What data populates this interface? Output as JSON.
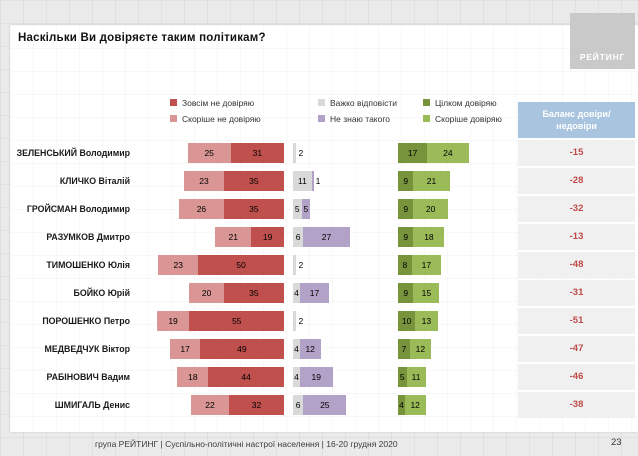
{
  "page": {
    "logo_text": "РЕЙТИНГ",
    "footer": "група РЕЙТИНГ | Суспільно-політичні настрої населення | 16-20 грудня 2020",
    "page_number": "23"
  },
  "chart_data": {
    "type": "bar",
    "orientation": "horizontal",
    "stacked": true,
    "title": "Наскільки Ви довіряєте таким політикам?",
    "unit": "%",
    "legend_position": "top",
    "legend": [
      {
        "label": "Зовсім не довіряю",
        "color": "#C0504D"
      },
      {
        "label": "Скоріше не довіряю",
        "color": "#D99694"
      },
      {
        "label": "Важко відповісти",
        "color": "#D9D9D9"
      },
      {
        "label": "Не знаю такого",
        "color": "#B3A2C7"
      },
      {
        "label": "Цілком довіряю",
        "color": "#77933C"
      },
      {
        "label": "Скоріше довіряю",
        "color": "#9BBB59"
      }
    ],
    "categories": [
      "ЗЕЛЕНСЬКИЙ Володимир",
      "КЛИЧКО Віталій",
      "ГРОЙСМАН Володимир",
      "РАЗУМКОВ Дмитро",
      "ТИМОШЕНКО Юлія",
      "БОЙКО Юрій",
      "ПОРОШЕНКО Петро",
      "МЕДВЕДЧУК Віктор",
      "РАБІНОВИЧ Вадим",
      "ШМИГАЛЬ Денис"
    ],
    "series": [
      {
        "name": "Скоріше не довіряю",
        "color": "#D99694",
        "values": [
          25,
          23,
          26,
          21,
          23,
          20,
          19,
          17,
          18,
          22
        ]
      },
      {
        "name": "Зовсім не довіряю",
        "color": "#C0504D",
        "values": [
          31,
          35,
          35,
          19,
          50,
          35,
          55,
          49,
          44,
          32
        ]
      },
      {
        "name": "Важко відповісти",
        "color": "#D9D9D9",
        "values": [
          2,
          11,
          5,
          6,
          2,
          4,
          2,
          4,
          4,
          6
        ]
      },
      {
        "name": "Не знаю такого",
        "color": "#B3A2C7",
        "values": [
          0,
          1,
          5,
          27,
          0,
          17,
          0,
          12,
          19,
          25
        ]
      },
      {
        "name": "Цілком довіряю",
        "color": "#77933C",
        "values": [
          17,
          9,
          9,
          9,
          8,
          9,
          10,
          7,
          5,
          4
        ]
      },
      {
        "name": "Скоріше довіряю",
        "color": "#9BBB59",
        "values": [
          24,
          21,
          20,
          18,
          17,
          15,
          13,
          12,
          11,
          12
        ]
      }
    ],
    "balance": {
      "header": "Баланс довіри/недовіри",
      "header_bg": "#A9C4DE",
      "cell_bg": "#F0F0F0",
      "value_color": "#BE4B48",
      "values": [
        -15,
        -28,
        -32,
        -13,
        -48,
        -31,
        -51,
        -47,
        -46,
        -38
      ]
    }
  }
}
